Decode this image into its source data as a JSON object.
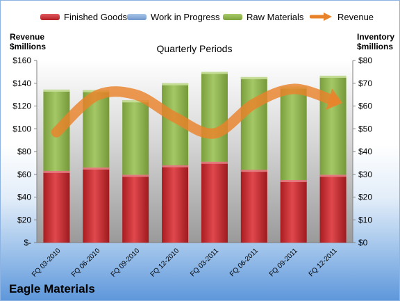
{
  "legend": {
    "finished_goods": "Finished Goods",
    "work_in_progress": "Work in Progress",
    "raw_materials": "Raw Materials",
    "revenue": "Revenue"
  },
  "left_axis_title": [
    "Revenue",
    "$millions"
  ],
  "right_axis_title": [
    "Inventory",
    "$millions"
  ],
  "company_name": "Eagle Materials",
  "colors": {
    "finished_goods": "#c0282d",
    "work_in_progress": "#7aa3d4",
    "raw_materials": "#8db34a",
    "revenue": "#e9832b"
  },
  "chart_data": {
    "type": "bar",
    "stacked": true,
    "title": "Quarterly Periods",
    "categories": [
      "FQ 03-2010",
      "FQ 06-2010",
      "FQ 09-2010",
      "FQ 12-2010",
      "FQ 03-2011",
      "FQ 06-2011",
      "FQ 09-2011",
      "FQ 12-2011"
    ],
    "y_left": {
      "label": "Revenue $millions",
      "range": [
        0,
        160
      ],
      "ticks": [
        "$-",
        "$20",
        "$40",
        "$60",
        "$80",
        "$100",
        "$120",
        "$140",
        "$160"
      ]
    },
    "y_right": {
      "label": "Inventory $millions",
      "range": [
        0,
        80
      ],
      "ticks": [
        "$0",
        "$10",
        "$20",
        "$30",
        "$40",
        "$50",
        "$60",
        "$70",
        "$80"
      ]
    },
    "series": [
      {
        "name": "Finished Goods",
        "axis": "right",
        "values": [
          31.5,
          33,
          29.8,
          34,
          35.5,
          32,
          27.5,
          29.8
        ]
      },
      {
        "name": "Work in Progress",
        "axis": "right",
        "values": [
          0,
          0,
          0,
          0,
          0,
          0,
          0,
          0
        ]
      },
      {
        "name": "Raw Materials",
        "axis": "right",
        "values": [
          35.7,
          34,
          32.7,
          36,
          39.5,
          40.7,
          41,
          43.5
        ]
      },
      {
        "name": "Revenue",
        "type": "line",
        "axis": "left",
        "values": [
          97,
          129,
          130,
          110,
          96,
          122,
          135,
          125
        ]
      }
    ],
    "grid": false,
    "legend_position": "top"
  }
}
